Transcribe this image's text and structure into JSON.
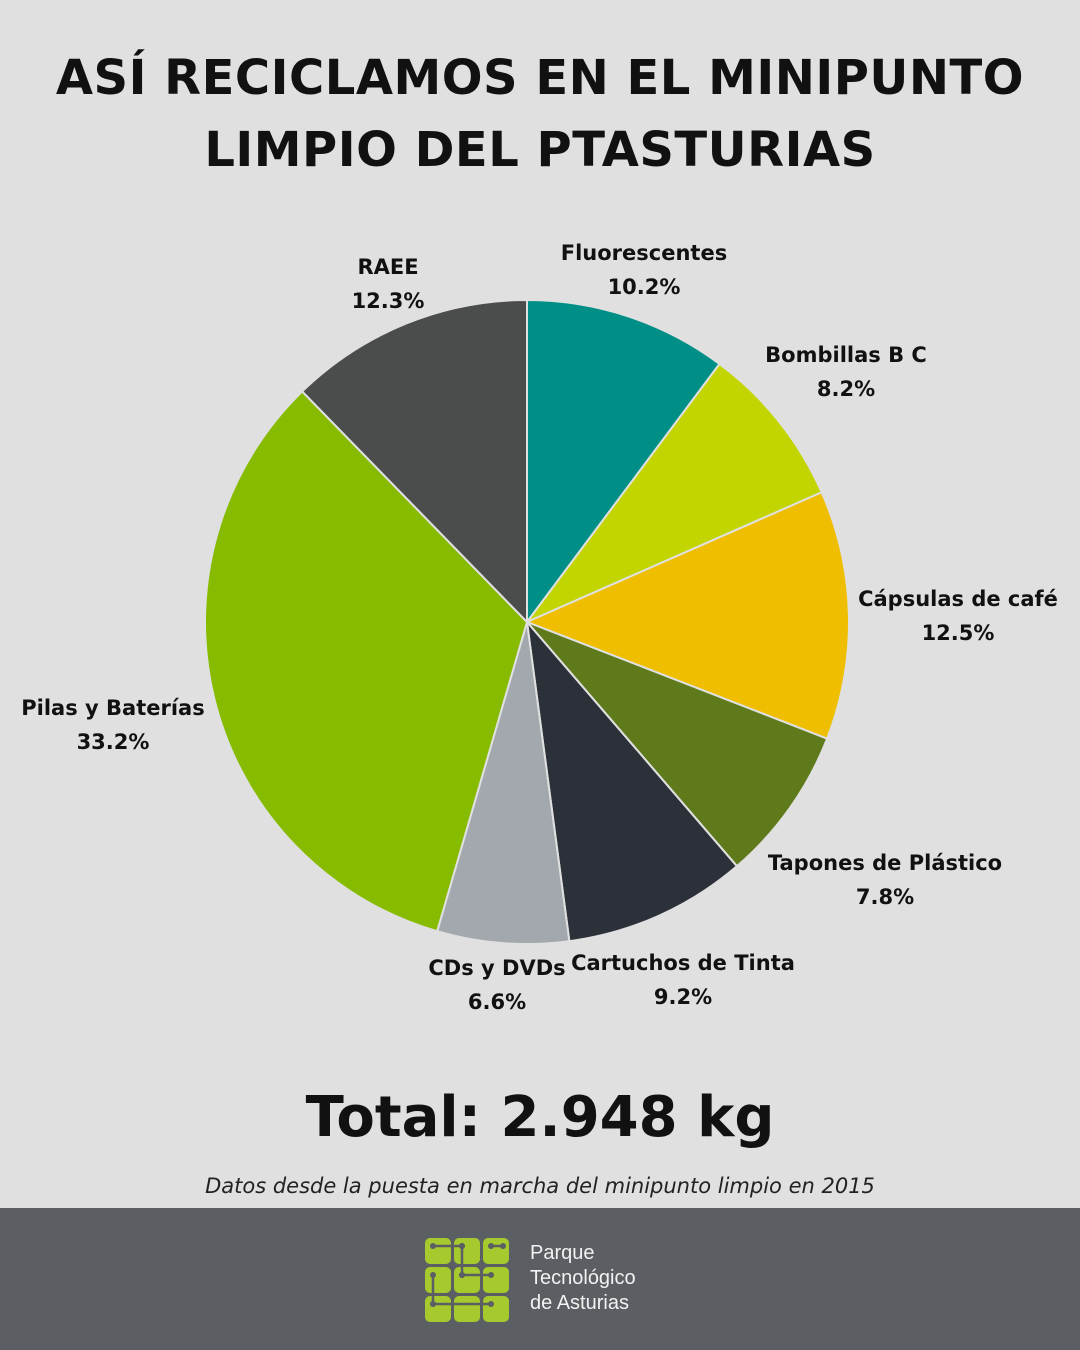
{
  "title": {
    "line1": "ASÍ RECICLAMOS EN EL MINIPUNTO",
    "line2": "LIMPIO DEL PTASTURIAS"
  },
  "chart_data": {
    "type": "pie",
    "title": "ASÍ RECICLAMOS EN EL MINIPUNTO LIMPIO DEL PTASTURIAS",
    "slices": [
      {
        "name": "Fluorescentes",
        "value": 10.2,
        "label": "10.2%",
        "color": "#008f86"
      },
      {
        "name": "Bombillas B C",
        "value": 8.2,
        "label": "8.2%",
        "color": "#c3d500"
      },
      {
        "name": "Cápsulas de café",
        "value": 12.5,
        "label": "12.5%",
        "color": "#efbe00"
      },
      {
        "name": "Tapones de Plástico",
        "value": 7.8,
        "label": "7.8%",
        "color": "#5f7a1a"
      },
      {
        "name": "Cartuchos de Tinta",
        "value": 9.2,
        "label": "9.2%",
        "color": "#2c3038"
      },
      {
        "name": "CDs y DVDs",
        "value": 6.6,
        "label": "6.6%",
        "color": "#a2a8ad"
      },
      {
        "name": "Pilas y Baterías",
        "value": 33.2,
        "label": "33.2%",
        "color": "#86bb00"
      },
      {
        "name": "RAEE",
        "value": 12.3,
        "label": "12.3%",
        "color": "#4a4d4b"
      }
    ]
  },
  "total": "Total: 2.948 kg",
  "note": "Datos desde la puesta en marcha del minipunto limpio en 2015",
  "footer": {
    "brand_line1": "Parque",
    "brand_line2": "Tecnológico",
    "brand_line3": "de Asturias",
    "logo_color": "#a6c92e"
  }
}
